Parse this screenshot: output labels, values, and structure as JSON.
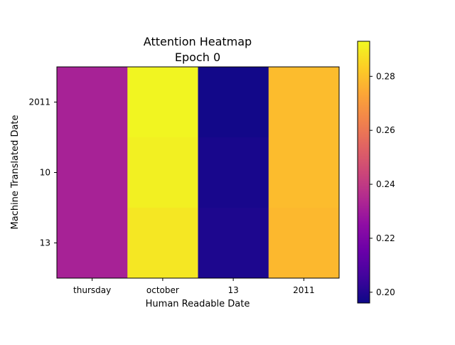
{
  "chart_data": {
    "type": "heatmap",
    "title_lines": [
      "Attention Heatmap",
      "Epoch 0"
    ],
    "xlabel": "Human Readable Date",
    "ylabel": "Machine Translated Date",
    "x_categories": [
      "thursday",
      "october",
      "13",
      "2011"
    ],
    "y_categories": [
      "2011",
      "10",
      "13"
    ],
    "values": [
      [
        0.232,
        0.292,
        0.197,
        0.279
      ],
      [
        0.232,
        0.291,
        0.198,
        0.279
      ],
      [
        0.232,
        0.289,
        0.199,
        0.278
      ]
    ],
    "colorscale": "plasma",
    "vmin": 0.196,
    "vmax": 0.293,
    "colorbar_ticks": [
      0.2,
      0.22,
      0.24,
      0.26,
      0.28
    ],
    "colorbar_tick_labels": [
      "0.20",
      "0.22",
      "0.24",
      "0.26",
      "0.28"
    ]
  }
}
